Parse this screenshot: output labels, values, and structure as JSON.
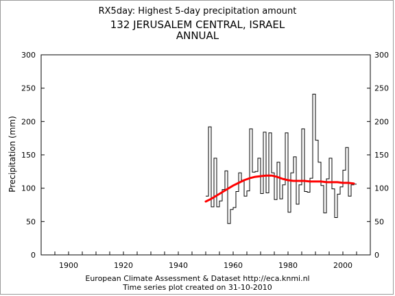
{
  "chart_data": {
    "type": "line",
    "title": "RX5day: Highest 5-day precipitation amount",
    "subtitle": "132 JERUSALEM CENTRAL, ISRAEL",
    "subtitle2": "ANNUAL",
    "xlabel": "",
    "ylabel": "Precipitation (mm)",
    "xlim": [
      1890,
      2010
    ],
    "ylim": [
      0,
      300
    ],
    "xticks": [
      1900,
      1920,
      1940,
      1960,
      1980,
      2000
    ],
    "yticks": [
      0,
      50,
      100,
      150,
      200,
      250,
      300
    ],
    "grid": false,
    "series": [
      {
        "style": "step",
        "color": "#000000",
        "x": [
          1950,
          1951,
          1952,
          1953,
          1954,
          1955,
          1956,
          1957,
          1958,
          1959,
          1960,
          1961,
          1962,
          1963,
          1964,
          1965,
          1966,
          1967,
          1968,
          1969,
          1970,
          1971,
          1972,
          1973,
          1974,
          1975,
          1976,
          1977,
          1978,
          1979,
          1980,
          1981,
          1982,
          1983,
          1984,
          1985,
          1986,
          1987,
          1988,
          1989,
          1990,
          1991,
          1992,
          1993,
          1994,
          1995,
          1996,
          1997,
          1998,
          1999,
          2000,
          2001,
          2002,
          2003,
          2004
        ],
        "values": [
          88,
          192,
          72,
          145,
          72,
          81,
          98,
          126,
          47,
          68,
          71,
          95,
          123,
          112,
          88,
          96,
          189,
          124,
          125,
          145,
          92,
          184,
          93,
          183,
          123,
          83,
          139,
          84,
          105,
          183,
          64,
          123,
          147,
          76,
          105,
          189,
          95,
          94,
          115,
          241,
          172,
          139,
          104,
          63,
          114,
          145,
          99,
          56,
          91,
          102,
          127,
          161,
          88,
          105,
          106
        ]
      },
      {
        "style": "smooth",
        "color": "#ff0000",
        "x": [
          1950,
          1952,
          1954,
          1956,
          1958,
          1960,
          1962,
          1964,
          1966,
          1968,
          1970,
          1972,
          1974,
          1976,
          1978,
          1980,
          1982,
          1984,
          1986,
          1988,
          1990,
          1992,
          1994,
          1996,
          1998,
          2000,
          2002,
          2004
        ],
        "values": [
          80,
          84,
          89,
          94,
          99,
          104,
          108,
          112,
          115,
          117,
          118,
          119,
          119,
          117,
          114,
          112,
          111,
          111,
          111,
          110,
          110,
          110,
          109,
          109,
          109,
          108,
          108,
          107
        ]
      }
    ]
  },
  "footer": {
    "line1": "European Climate Assessment & Dataset  http://eca.knmi.nl",
    "line2": "Time series plot created on 31-10-2010"
  }
}
